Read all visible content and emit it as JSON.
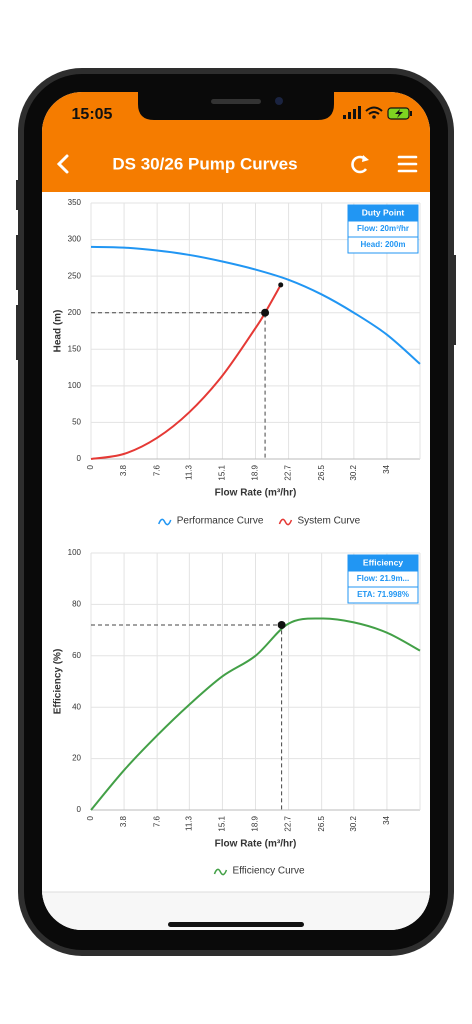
{
  "status_bar": {
    "time": "15:05"
  },
  "header": {
    "title": "DS 30/26 Pump Curves"
  },
  "chart_data": [
    {
      "type": "line",
      "x_label": "Flow Rate (m³/hr)",
      "y_label": "Head (m)",
      "xlim": [
        0,
        37.8
      ],
      "xticks": [
        0,
        3.8,
        7.6,
        11.3,
        15.1,
        18.9,
        22.7,
        26.5,
        30.2,
        34
      ],
      "ylim": [
        0,
        350
      ],
      "yticks": [
        0,
        50,
        100,
        150,
        200,
        250,
        300,
        350
      ],
      "grid": true,
      "series": [
        {
          "name": "Performance Curve",
          "color": "#2196f3",
          "x": [
            0,
            3.8,
            7.6,
            11.3,
            15.1,
            18.9,
            22.7,
            26.5,
            30.2,
            34,
            37.8
          ],
          "values": [
            290,
            289,
            285,
            279,
            270,
            259,
            245,
            225,
            200,
            170,
            130
          ]
        },
        {
          "name": "System Curve",
          "color": "#e53935",
          "x": [
            0,
            3.8,
            7.6,
            11.3,
            15.1,
            18.9,
            20,
            21.8
          ],
          "values": [
            0,
            7,
            29,
            64,
            114,
            179,
            200,
            238
          ]
        }
      ],
      "marker": {
        "x": 20,
        "y": 200
      },
      "intersection": {
        "x": 21.8,
        "y": 238
      },
      "annotation": {
        "title": "Duty Point",
        "lines": [
          "Flow: 20m³/hr",
          "Head: 200m"
        ]
      }
    },
    {
      "type": "line",
      "x_label": "Flow Rate (m³/hr)",
      "y_label": "Efficiency (%)",
      "xlim": [
        0,
        37.8
      ],
      "xticks": [
        0,
        3.8,
        7.6,
        11.3,
        15.1,
        18.9,
        22.7,
        26.5,
        30.2,
        34
      ],
      "ylim": [
        0,
        100
      ],
      "yticks": [
        0,
        20,
        40,
        60,
        80,
        100
      ],
      "grid": true,
      "series": [
        {
          "name": "Efficiency Curve",
          "color": "#43a047",
          "x": [
            0,
            3.8,
            7.6,
            11.3,
            15.1,
            18.9,
            22.7,
            26.5,
            30.2,
            34,
            37.8
          ],
          "values": [
            0,
            15.5,
            29,
            41,
            52,
            60,
            72.5,
            74.5,
            73,
            69,
            62
          ]
        }
      ],
      "marker": {
        "x": 21.9,
        "y": 71.998
      },
      "annotation": {
        "title": "Efficiency",
        "lines": [
          "Flow: 21.9m...",
          "ETA: 71.998%"
        ]
      }
    }
  ]
}
